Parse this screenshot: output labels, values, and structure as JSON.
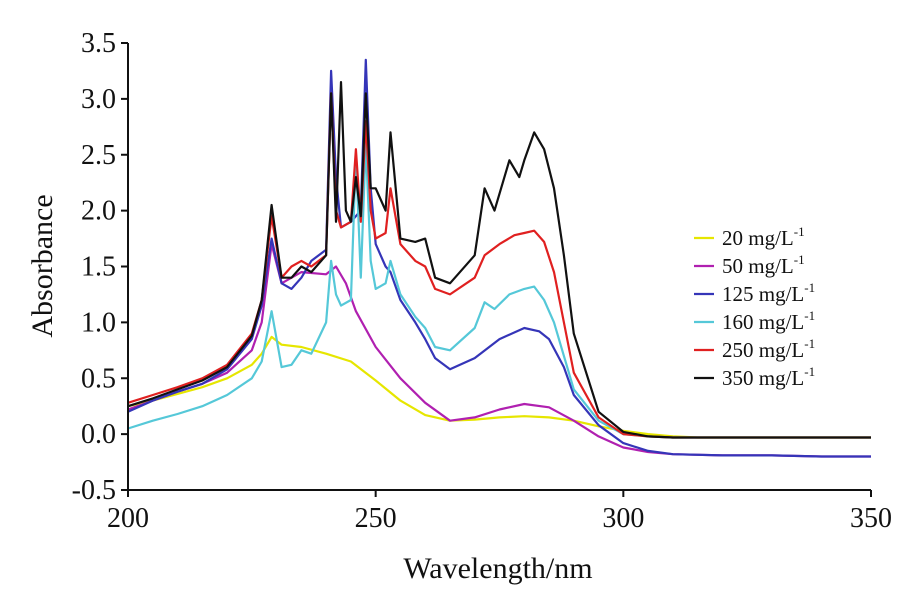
{
  "chart_data": {
    "type": "line",
    "title": "",
    "xlabel": "Wavelength/nm",
    "ylabel": "Absorbance",
    "xlim": [
      200,
      350
    ],
    "ylim": [
      -0.5,
      3.5
    ],
    "xticks": [
      "200",
      "250",
      "300",
      "350"
    ],
    "yticks": [
      "-0.5",
      "0.0",
      "0.5",
      "1.0",
      "1.5",
      "2.0",
      "2.5",
      "3.0",
      "3.5"
    ],
    "grid": false,
    "legend_position": "right",
    "series": [
      {
        "name": "20 mg/L",
        "name_sup": "-1",
        "color": "#e6e600",
        "x": [
          200,
          205,
          210,
          215,
          220,
          225,
          227,
          229,
          231,
          235,
          240,
          245,
          250,
          255,
          260,
          265,
          270,
          275,
          280,
          285,
          290,
          295,
          300,
          305,
          310,
          315,
          320,
          330,
          340,
          350
        ],
        "y": [
          0.25,
          0.3,
          0.36,
          0.42,
          0.5,
          0.62,
          0.72,
          0.87,
          0.8,
          0.78,
          0.72,
          0.65,
          0.48,
          0.3,
          0.17,
          0.12,
          0.13,
          0.15,
          0.16,
          0.15,
          0.12,
          0.07,
          0.03,
          0.0,
          -0.02,
          -0.03,
          -0.03,
          -0.03,
          -0.03,
          -0.03
        ]
      },
      {
        "name": "50 mg/L",
        "name_sup": "-1",
        "color": "#b020b0",
        "x": [
          200,
          205,
          210,
          215,
          220,
          225,
          227,
          229,
          231,
          235,
          240,
          242,
          244,
          246,
          250,
          255,
          260,
          265,
          270,
          275,
          280,
          285,
          290,
          295,
          300,
          305,
          310,
          320,
          330,
          340,
          350
        ],
        "y": [
          0.22,
          0.3,
          0.38,
          0.45,
          0.55,
          0.75,
          1.0,
          1.7,
          1.35,
          1.45,
          1.43,
          1.5,
          1.35,
          1.1,
          0.78,
          0.5,
          0.28,
          0.12,
          0.15,
          0.22,
          0.27,
          0.24,
          0.12,
          -0.02,
          -0.12,
          -0.16,
          -0.18,
          -0.19,
          -0.19,
          -0.2,
          -0.2
        ]
      },
      {
        "name": "125 mg/L",
        "name_sup": "-1",
        "color": "#3535b8",
        "x": [
          200,
          205,
          210,
          215,
          220,
          225,
          227,
          229,
          231,
          233,
          235,
          237,
          240,
          241,
          242,
          243,
          245,
          247,
          248,
          249,
          250,
          252,
          253,
          255,
          258,
          260,
          262,
          265,
          270,
          275,
          280,
          283,
          285,
          288,
          290,
          295,
          300,
          305,
          310,
          320,
          330,
          340,
          350
        ],
        "y": [
          0.2,
          0.3,
          0.38,
          0.45,
          0.58,
          0.85,
          1.15,
          1.75,
          1.35,
          1.3,
          1.4,
          1.55,
          1.65,
          3.25,
          2.3,
          1.85,
          1.9,
          2.0,
          3.35,
          2.2,
          1.7,
          1.5,
          1.45,
          1.2,
          1.0,
          0.85,
          0.68,
          0.58,
          0.68,
          0.85,
          0.95,
          0.92,
          0.85,
          0.6,
          0.35,
          0.08,
          -0.08,
          -0.15,
          -0.18,
          -0.19,
          -0.19,
          -0.2,
          -0.2
        ]
      },
      {
        "name": "160 mg/L",
        "name_sup": "-1",
        "color": "#55c8d8",
        "x": [
          200,
          205,
          210,
          215,
          220,
          225,
          227,
          229,
          231,
          233,
          235,
          237,
          240,
          241,
          242,
          243,
          245,
          246,
          247,
          248,
          249,
          250,
          252,
          253,
          255,
          258,
          260,
          262,
          265,
          270,
          272,
          274,
          277,
          280,
          282,
          284,
          286,
          288,
          290,
          295,
          300,
          305,
          310,
          320,
          330,
          340,
          350
        ],
        "y": [
          0.05,
          0.12,
          0.18,
          0.25,
          0.35,
          0.5,
          0.65,
          1.1,
          0.6,
          0.62,
          0.75,
          0.72,
          1.0,
          1.55,
          1.25,
          1.15,
          1.2,
          2.5,
          1.4,
          2.6,
          1.55,
          1.3,
          1.35,
          1.55,
          1.25,
          1.05,
          0.95,
          0.78,
          0.75,
          0.95,
          1.18,
          1.12,
          1.25,
          1.3,
          1.32,
          1.2,
          1.0,
          0.7,
          0.4,
          0.12,
          0.0,
          -0.02,
          -0.03,
          -0.03,
          -0.03,
          -0.03,
          -0.03
        ]
      },
      {
        "name": "250 mg/L",
        "name_sup": "-1",
        "color": "#e02020",
        "x": [
          200,
          205,
          210,
          215,
          220,
          225,
          227,
          229,
          231,
          233,
          235,
          237,
          240,
          241,
          242,
          243,
          245,
          246,
          247,
          248,
          249,
          250,
          252,
          253,
          255,
          258,
          260,
          262,
          265,
          270,
          272,
          275,
          278,
          280,
          282,
          284,
          286,
          288,
          290,
          295,
          300,
          305,
          310,
          320,
          330,
          340,
          350
        ],
        "y": [
          0.28,
          0.35,
          0.42,
          0.5,
          0.62,
          0.9,
          1.2,
          1.95,
          1.4,
          1.5,
          1.55,
          1.5,
          1.6,
          3.05,
          2.0,
          1.85,
          1.9,
          2.55,
          1.9,
          2.8,
          2.0,
          1.75,
          1.8,
          2.2,
          1.7,
          1.55,
          1.5,
          1.3,
          1.25,
          1.4,
          1.6,
          1.7,
          1.78,
          1.8,
          1.82,
          1.72,
          1.45,
          1.0,
          0.55,
          0.15,
          0.0,
          -0.02,
          -0.03,
          -0.03,
          -0.03,
          -0.03,
          -0.03
        ]
      },
      {
        "name": "350 mg/L",
        "name_sup": "-1",
        "color": "#111111",
        "x": [
          200,
          205,
          210,
          215,
          220,
          225,
          227,
          229,
          231,
          233,
          235,
          237,
          240,
          241,
          242,
          243,
          244,
          245,
          246,
          247,
          248,
          249,
          250,
          252,
          253,
          255,
          258,
          260,
          262,
          265,
          270,
          272,
          274,
          277,
          279,
          280,
          282,
          284,
          286,
          288,
          290,
          295,
          300,
          305,
          310,
          320,
          330,
          340,
          350
        ],
        "y": [
          0.25,
          0.32,
          0.4,
          0.48,
          0.6,
          0.88,
          1.2,
          2.05,
          1.4,
          1.4,
          1.5,
          1.45,
          1.6,
          3.05,
          1.9,
          3.15,
          2.0,
          1.9,
          2.3,
          1.95,
          3.05,
          2.2,
          2.2,
          2.0,
          2.7,
          1.75,
          1.72,
          1.75,
          1.4,
          1.35,
          1.6,
          2.2,
          2.0,
          2.45,
          2.3,
          2.45,
          2.7,
          2.55,
          2.2,
          1.6,
          0.9,
          0.2,
          0.02,
          -0.02,
          -0.03,
          -0.03,
          -0.03,
          -0.03,
          -0.03
        ]
      }
    ]
  }
}
